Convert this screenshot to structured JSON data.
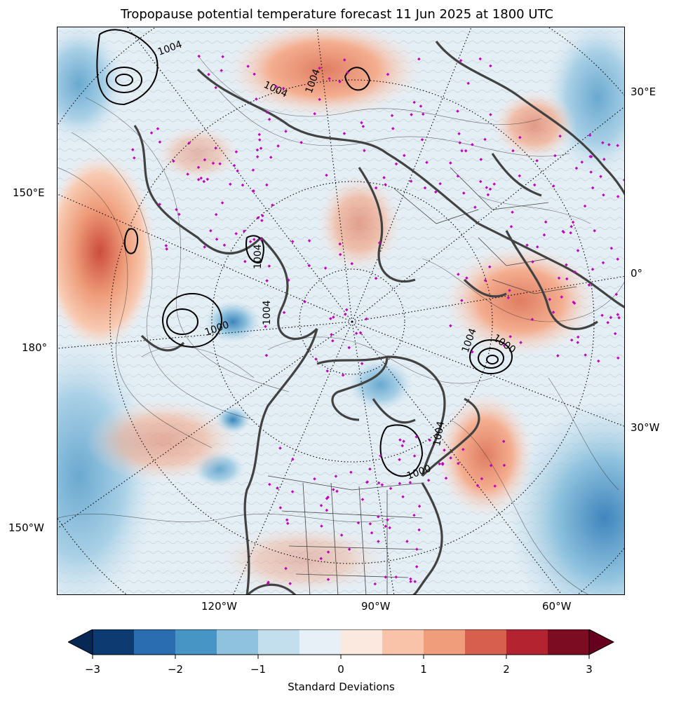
{
  "title": "Tropopause potential temperature forecast 11 Jun 2025 at 1800 UTC",
  "lon_labels": {
    "right": [
      "30°E",
      "0°",
      "30°W"
    ],
    "left": [
      "150°E",
      "180°",
      "150°W"
    ],
    "bottom": [
      "120°W",
      "90°W",
      "60°W"
    ]
  },
  "contour_labels": [
    "1004",
    "1004",
    "1004",
    "1004",
    "1004",
    "1000",
    "1004",
    "1000",
    "1004",
    "1000"
  ],
  "colorbar": {
    "label": "Standard Deviations",
    "ticks": [
      "−3",
      "−2",
      "−1",
      "0",
      "1",
      "2",
      "3"
    ],
    "min": -3,
    "max": 3,
    "step": 0.5,
    "colors": [
      "#0d3a70",
      "#2a6db1",
      "#4695c5",
      "#8fc2de",
      "#c3deec",
      "#e6f0f6",
      "#fbe8df",
      "#f8c3a8",
      "#f09d7c",
      "#d6604d",
      "#b42430",
      "#7c0c22"
    ],
    "extend_low": "#072854",
    "extend_high": "#67001f"
  }
}
